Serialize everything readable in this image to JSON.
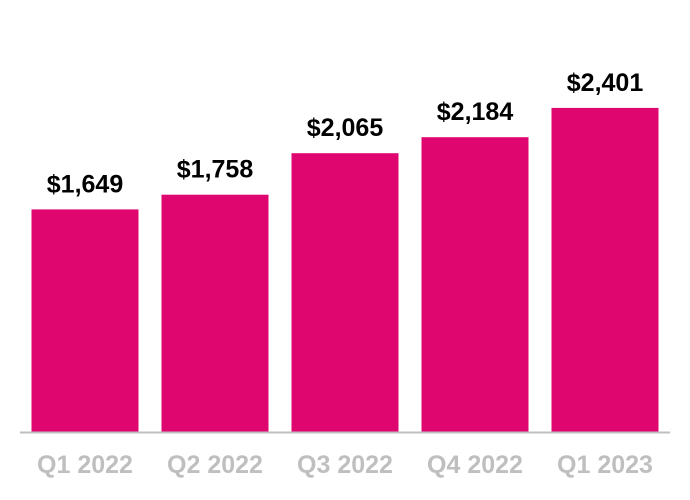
{
  "chart_data": {
    "type": "bar",
    "categories": [
      "Q1 2022",
      "Q2 2022",
      "Q3 2022",
      "Q4 2022",
      "Q1 2023"
    ],
    "values": [
      1649,
      1758,
      2065,
      2184,
      2401
    ],
    "data_labels": [
      "$1,649",
      "$1,758",
      "$2,065",
      "$2,184",
      "$2,401"
    ],
    "title": "",
    "xlabel": "",
    "ylabel": "",
    "ylim": [
      0,
      2800
    ],
    "grid": false,
    "legend": "none",
    "colors": {
      "bar": "#e0066f",
      "axis": "#bfbfbf",
      "tick_label": "#bfbfbf",
      "data_label": "#000000"
    }
  }
}
